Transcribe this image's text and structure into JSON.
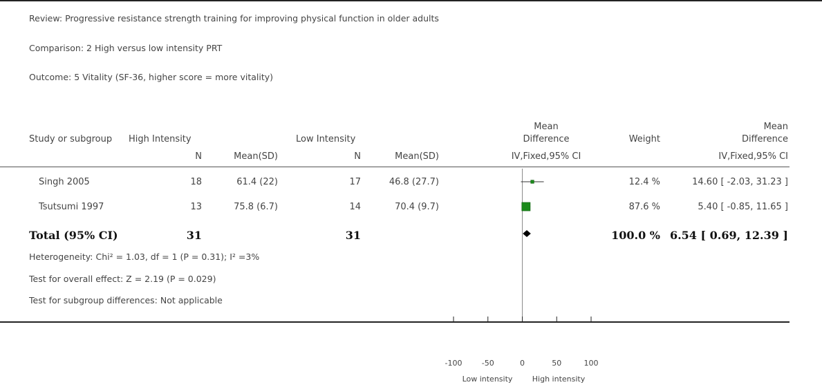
{
  "header": {
    "review": "Review:   Progressive resistance strength training for improving physical function in older adults",
    "comparison": "Comparison:   2 High versus low intensity PRT",
    "outcome": "Outcome:   5 Vitality (SF-36, higher score = more vitality)"
  },
  "columns": {
    "study": "Study or subgroup",
    "high_group": "High Intensity",
    "low_group": "Low Intensity",
    "n": "N",
    "mean_sd": "Mean(SD)",
    "md_title_1": "Mean",
    "md_title_2": "Difference",
    "md_method": "IV,Fixed,95% CI",
    "weight": "Weight",
    "md_result_1": "Mean",
    "md_result_2": "Difference",
    "md_result_method": "IV,Fixed,95% CI"
  },
  "studies": [
    {
      "name": "Singh 2005",
      "high_n": "18",
      "high_mean_sd": "61.4 (22)",
      "low_n": "17",
      "low_mean_sd": "46.8 (27.7)",
      "weight": "12.4 %",
      "md_ci": "14.60 [ -2.03, 31.23 ]"
    },
    {
      "name": "Tsutsumi 1997",
      "high_n": "13",
      "high_mean_sd": "75.8 (6.7)",
      "low_n": "14",
      "low_mean_sd": "70.4 (9.7)",
      "weight": "87.6 %",
      "md_ci": "5.40 [ -0.85, 11.65 ]"
    }
  ],
  "total": {
    "label": "Total (95% CI)",
    "high_n": "31",
    "low_n": "31",
    "weight": "100.0 %",
    "md_ci": "6.54 [ 0.69, 12.39 ]"
  },
  "footnotes": {
    "heterogeneity": "Heterogeneity: Chi² = 1.03, df = 1 (P = 0.31); I² =3%",
    "overall": "Test for overall effect: Z = 2.19 (P = 0.029)",
    "subgroup": "Test for subgroup differences: Not applicable"
  },
  "axis": {
    "ticks": [
      "-100",
      "-50",
      "0",
      "50",
      "100"
    ],
    "left_label": "Low intensity",
    "right_label": "High intensity"
  },
  "colors": {
    "study_marker": "#1b8a1b",
    "diamond": "#000000"
  },
  "chart_data": {
    "type": "forest",
    "xlim": [
      -100,
      100
    ],
    "xticks": [
      -100,
      -50,
      0,
      50,
      100
    ],
    "studies": [
      {
        "name": "Singh 2005",
        "md": 14.6,
        "lo": -2.03,
        "hi": 31.23,
        "weight": 12.4
      },
      {
        "name": "Tsutsumi 1997",
        "md": 5.4,
        "lo": -0.85,
        "hi": 11.65,
        "weight": 87.6
      }
    ],
    "pooled": {
      "md": 6.54,
      "lo": 0.69,
      "hi": 12.39
    }
  }
}
